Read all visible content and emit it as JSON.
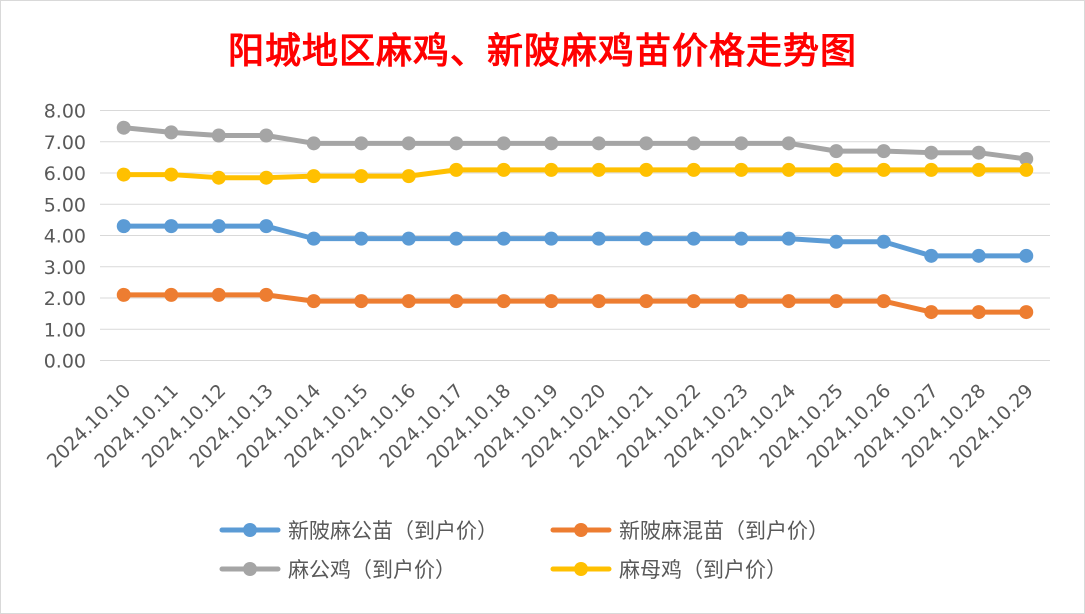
{
  "chart_data": {
    "type": "line",
    "title": "阳城地区麻鸡、新陂麻鸡苗价格走势图",
    "xlabel": "",
    "ylabel": "",
    "ylim": [
      0,
      8
    ],
    "y_ticks": [
      "0.00",
      "1.00",
      "2.00",
      "3.00",
      "4.00",
      "5.00",
      "6.00",
      "7.00",
      "8.00"
    ],
    "grid": true,
    "legend_position": "bottom",
    "categories": [
      "2024.10.10",
      "2024.10.11",
      "2024.10.12",
      "2024.10.13",
      "2024.10.14",
      "2024.10.15",
      "2024.10.16",
      "2024.10.17",
      "2024.10.18",
      "2024.10.19",
      "2024.10.20",
      "2024.10.21",
      "2024.10.22",
      "2024.10.23",
      "2024.10.24",
      "2024.10.25",
      "2024.10.26",
      "2024.10.27",
      "2024.10.28",
      "2024.10.29"
    ],
    "series": [
      {
        "name": "新陂麻公苗（到户价）",
        "color": "#5b9bd5",
        "values": [
          4.3,
          4.3,
          4.3,
          4.3,
          3.9,
          3.9,
          3.9,
          3.9,
          3.9,
          3.9,
          3.9,
          3.9,
          3.9,
          3.9,
          3.9,
          3.8,
          3.8,
          3.35,
          3.35,
          3.35
        ]
      },
      {
        "name": "新陂麻混苗（到户价）",
        "color": "#ed7d31",
        "values": [
          2.1,
          2.1,
          2.1,
          2.1,
          1.9,
          1.9,
          1.9,
          1.9,
          1.9,
          1.9,
          1.9,
          1.9,
          1.9,
          1.9,
          1.9,
          1.9,
          1.9,
          1.55,
          1.55,
          1.55
        ]
      },
      {
        "name": "麻公鸡（到户价）",
        "color": "#a5a5a5",
        "values": [
          7.45,
          7.3,
          7.2,
          7.2,
          6.95,
          6.95,
          6.95,
          6.95,
          6.95,
          6.95,
          6.95,
          6.95,
          6.95,
          6.95,
          6.95,
          6.7,
          6.7,
          6.65,
          6.65,
          6.45
        ]
      },
      {
        "name": "麻母鸡（到户价）",
        "color": "#ffc000",
        "values": [
          5.95,
          5.95,
          5.85,
          5.85,
          5.9,
          5.9,
          5.9,
          6.1,
          6.1,
          6.1,
          6.1,
          6.1,
          6.1,
          6.1,
          6.1,
          6.1,
          6.1,
          6.1,
          6.1,
          6.1
        ]
      }
    ]
  }
}
